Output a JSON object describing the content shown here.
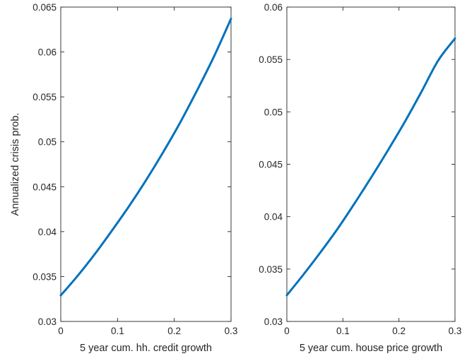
{
  "chart_data": [
    {
      "type": "line",
      "xlabel": "5 year cum. hh. credit growth",
      "ylabel": "Annualized crisis prob.",
      "xlim": [
        0,
        0.3
      ],
      "ylim": [
        0.03,
        0.065
      ],
      "xticks": [
        "0",
        "0.1",
        "0.2",
        "0.3"
      ],
      "yticks": [
        "0.03",
        "0.035",
        "0.04",
        "0.045",
        "0.05",
        "0.055",
        "0.06",
        "0.065"
      ],
      "grid": false,
      "series": [
        {
          "color": "#0072bd",
          "x": [
            0,
            0.03,
            0.06,
            0.09,
            0.12,
            0.15,
            0.18,
            0.21,
            0.24,
            0.27,
            0.3
          ],
          "y": [
            0.0329,
            0.0351,
            0.0375,
            0.0401,
            0.0428,
            0.0457,
            0.0488,
            0.0521,
            0.0557,
            0.0595,
            0.0637
          ]
        }
      ]
    },
    {
      "type": "line",
      "xlabel": "5 year cum. house price growth",
      "ylabel": "",
      "xlim": [
        0,
        0.3
      ],
      "ylim": [
        0.03,
        0.06
      ],
      "xticks": [
        "0",
        "0.1",
        "0.2",
        "0.3"
      ],
      "yticks": [
        "0.03",
        "0.035",
        "0.04",
        "0.045",
        "0.05",
        "0.055",
        "0.06"
      ],
      "grid": false,
      "series": [
        {
          "color": "#0072bd",
          "x": [
            0,
            0.03,
            0.06,
            0.09,
            0.12,
            0.15,
            0.18,
            0.21,
            0.24,
            0.27,
            0.3
          ],
          "y": [
            0.0325,
            0.0345,
            0.0366,
            0.0388,
            0.0412,
            0.0437,
            0.0463,
            0.049,
            0.0519,
            0.0549,
            0.057
          ]
        }
      ]
    }
  ]
}
